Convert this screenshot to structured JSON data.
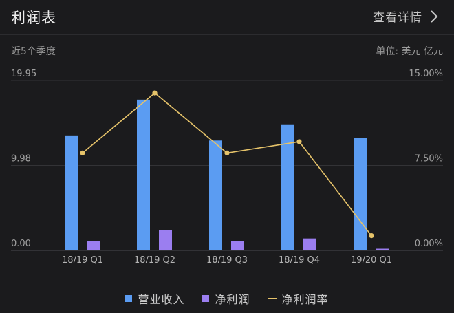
{
  "header": {
    "title": "利润表",
    "details_label": "查看详情"
  },
  "subheader": {
    "period": "近5个季度",
    "unit": "单位: 美元 亿元"
  },
  "colors": {
    "revenue": "#5b9cf2",
    "net_profit": "#9b7ef0",
    "margin": "#e6c36a"
  },
  "legend": {
    "revenue": "营业收入",
    "net_profit": "净利润",
    "margin": "净利润率"
  },
  "chart_data": {
    "type": "bar",
    "categories": [
      "18/19 Q1",
      "18/19 Q2",
      "18/19 Q3",
      "18/19 Q4",
      "19/20 Q1"
    ],
    "series": [
      {
        "name": "营业收入",
        "type": "bar",
        "axis": "left",
        "values": [
          13.5,
          17.7,
          12.9,
          14.8,
          13.2
        ]
      },
      {
        "name": "净利润",
        "type": "bar",
        "axis": "left",
        "values": [
          1.1,
          2.4,
          1.1,
          1.4,
          0.2
        ]
      },
      {
        "name": "净利润率",
        "type": "line",
        "axis": "right",
        "values": [
          8.6,
          13.9,
          8.6,
          9.6,
          1.3
        ]
      }
    ],
    "y_left": {
      "min": 0,
      "max": 19.95,
      "ticks": [
        "0.00",
        "9.98",
        "19.95"
      ]
    },
    "y_right": {
      "min": 0,
      "max": 15,
      "ticks": [
        "0.00%",
        "7.50%",
        "15.00%"
      ]
    },
    "grid": true,
    "legend_position": "bottom"
  }
}
